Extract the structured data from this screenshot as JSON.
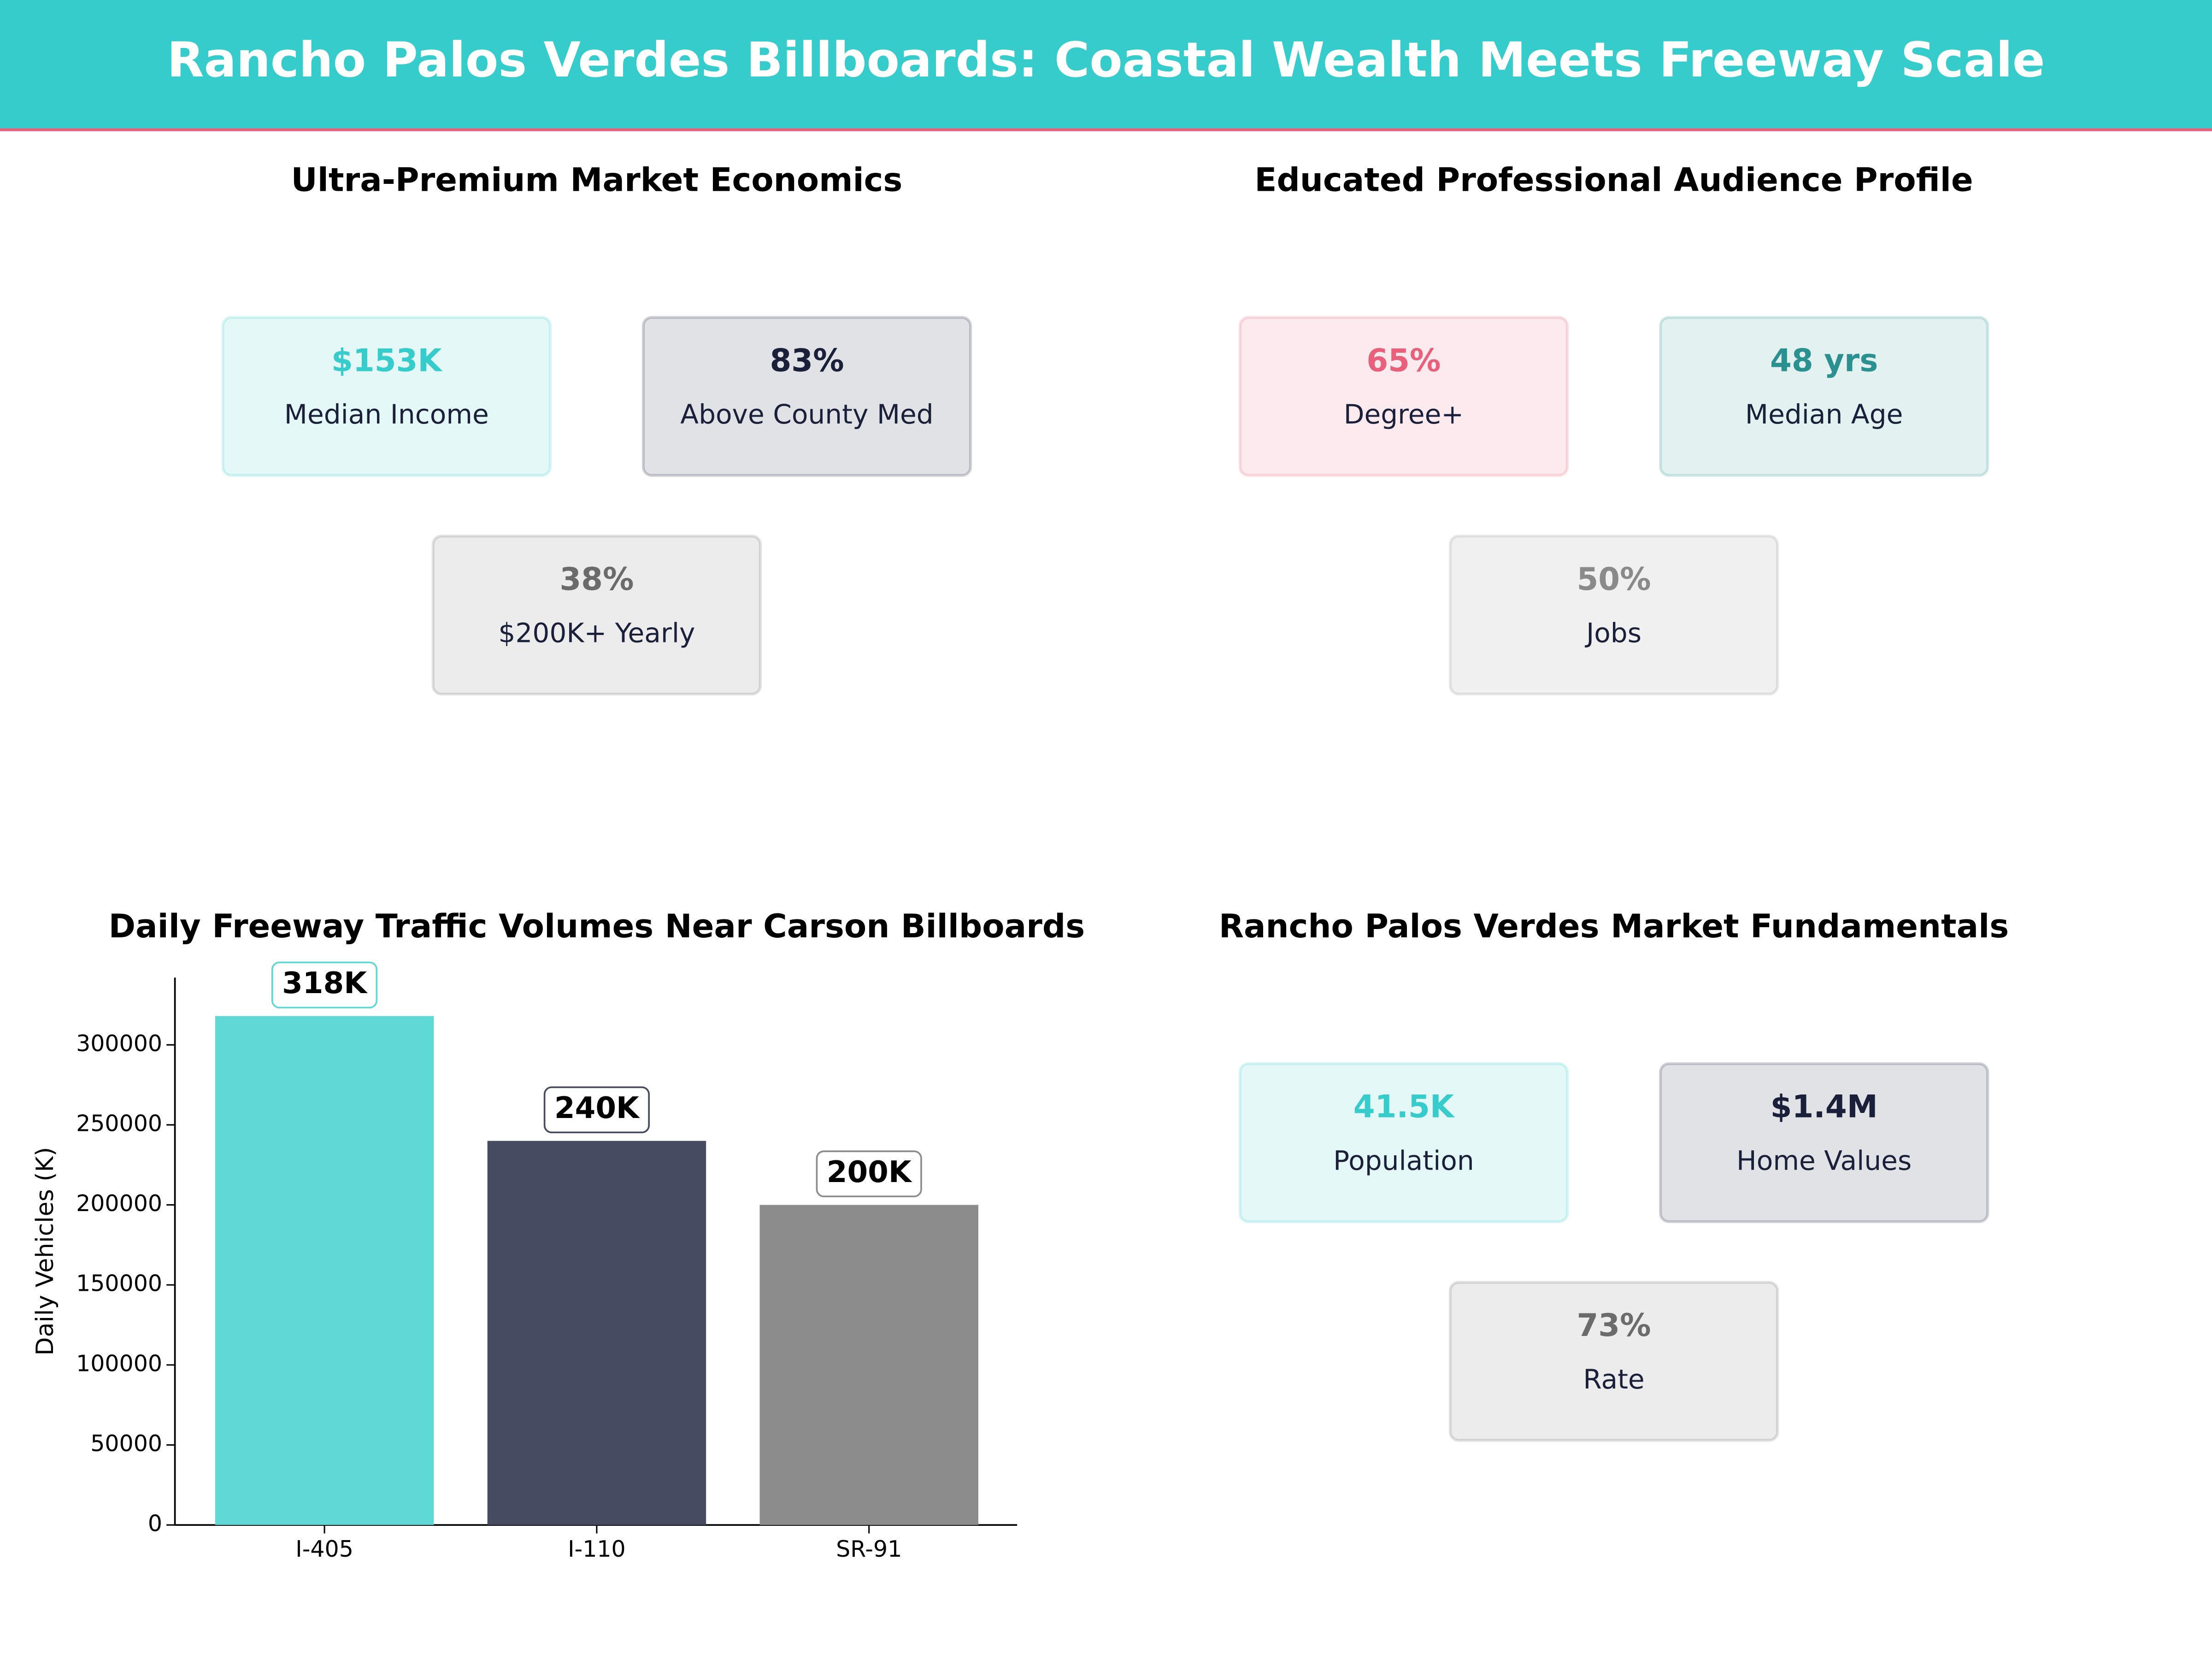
{
  "title": "Rancho Palos Verdes Billboards: Coastal Wealth Meets Freeway Scale",
  "kpi_panels": [
    {
      "title": "Ultra-Premium Market Economics",
      "cards": [
        {
          "value": "$153K",
          "label": "Median Income",
          "color": "#36cccc"
        },
        {
          "value": "83%",
          "label": "Above County Med",
          "color": "#1a1f3a"
        },
        {
          "value": "38%",
          "label": "$200K+ Yearly",
          "color": "#6b6b6b"
        }
      ]
    },
    {
      "title": "Educated Professional Audience Profile",
      "cards": [
        {
          "value": "65%",
          "label": "Degree+",
          "color": "#e8607a"
        },
        {
          "value": "48 yrs",
          "label": "Median Age",
          "color": "#2a9090"
        },
        {
          "value": "50%",
          "label": "Jobs",
          "color": "#8a8a8a"
        }
      ]
    },
    {
      "title": "Rancho Palos Verdes Market Fundamentals",
      "cards": [
        {
          "value": "41.5K",
          "label": "Population",
          "color": "#36cccc"
        },
        {
          "value": "$1.4M",
          "label": "Home Values",
          "color": "#1a1f3a"
        },
        {
          "value": "73%",
          "label": "Rate",
          "color": "#6b6b6b"
        }
      ]
    }
  ],
  "chart_data": {
    "type": "bar",
    "title": "Daily Freeway Traffic Volumes Near Carson Billboards",
    "y_label": "Daily Vehicles (K)",
    "categories": [
      "I-405",
      "I-110",
      "SR-91"
    ],
    "values": [
      318000,
      240000,
      200000
    ],
    "value_labels": [
      "318K",
      "240K",
      "200K"
    ],
    "colors": [
      "#5fd8d6",
      "#464b61",
      "#8c8c8c"
    ],
    "ylim": [
      0,
      342000
    ],
    "yticks": [
      0,
      50000,
      100000,
      150000,
      200000,
      250000,
      300000
    ]
  }
}
